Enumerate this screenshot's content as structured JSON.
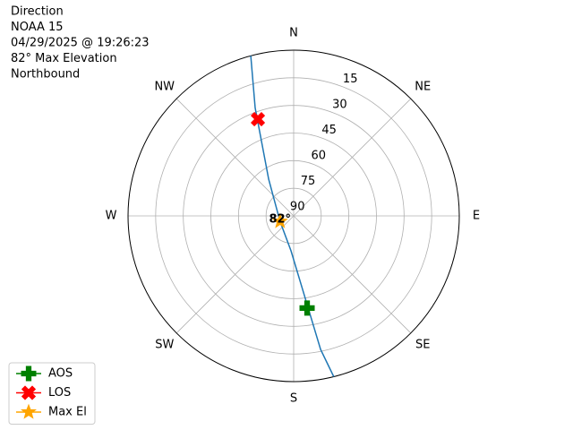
{
  "chart_data": {
    "type": "polar",
    "title": [
      "Direction",
      "NOAA 15",
      "04/29/2025 @ 19:26:23",
      "82° Max Elevation",
      "Northbound"
    ],
    "rlim": [
      90,
      0
    ],
    "rticks": [
      90,
      75,
      60,
      45,
      30,
      15
    ],
    "theta_ticks": [
      {
        "value": 0,
        "label": "N"
      },
      {
        "value": 45,
        "label": "NE"
      },
      {
        "value": 90,
        "label": "E"
      },
      {
        "value": 135,
        "label": "SE"
      },
      {
        "value": 180,
        "label": "S"
      },
      {
        "value": 225,
        "label": "SW"
      },
      {
        "value": 270,
        "label": "W"
      },
      {
        "value": 315,
        "label": "NW"
      }
    ],
    "grid": true,
    "series": [
      {
        "color": "#1f77b4",
        "az": [
          345,
          340.4,
          325.7,
          248,
          184.4,
          172.3,
          168.6,
          166
        ],
        "el": [
          0,
          27.7,
          65.9,
          82,
          71,
          46.2,
          16,
          0
        ]
      }
    ],
    "points": [
      {
        "name": "AOS",
        "color": "green",
        "marker": "plus",
        "az": 171.7,
        "el": 39.4
      },
      {
        "name": "LOS",
        "color": "red",
        "marker": "x",
        "az": 339.7,
        "el": 34
      },
      {
        "name": "Max El",
        "color": "orange",
        "marker": "star",
        "az": 248,
        "el": 82,
        "value_label": "82°"
      }
    ],
    "legend": "lower left"
  }
}
